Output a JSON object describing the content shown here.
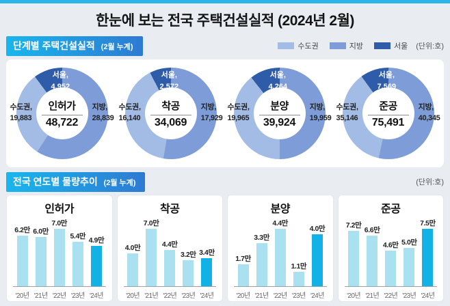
{
  "page": {
    "title": "한눈에 보는 전국 주택건설실적 (2024년 2월)"
  },
  "colors": {
    "accent_strip": "#2ab5e8",
    "capital": "#a3bce5",
    "province": "#7d9cd8",
    "seoul": "#2f5ca8",
    "bar": "#a9e1f0",
    "bar_highlight": "#12b2e6"
  },
  "section1": {
    "header": "단계별 주택건설실적",
    "header_sub": "(2월 누계)",
    "unit_label": "(단위:호)",
    "legend": [
      {
        "label": "수도권",
        "color_key": "capital"
      },
      {
        "label": "지방",
        "color_key": "province"
      },
      {
        "label": "서울",
        "color_key": "seoul"
      }
    ]
  },
  "section2": {
    "header": "전국 연도별 물량추이",
    "header_sub": "(2월 누계)",
    "unit_label": "(단위:호)"
  },
  "chart_data": [
    {
      "type": "donut",
      "title": "인허가",
      "total": 48722,
      "total_display": "48,722",
      "segments": {
        "capital": 19883,
        "province": 28839,
        "seoul": 4952
      },
      "segment_labels": {
        "capital": "수도권,",
        "province": "지방,",
        "seoul": "서울,"
      },
      "segment_displays": {
        "capital": "19,883",
        "province": "28,839",
        "seoul": "4,952"
      },
      "note": "수도권 includes 서울; donut order clockwise from top: 지방, 수도권, 서울"
    },
    {
      "type": "donut",
      "title": "착공",
      "total": 34069,
      "total_display": "34,069",
      "segments": {
        "capital": 16140,
        "province": 17929,
        "seoul": 2572
      },
      "segment_labels": {
        "capital": "수도권,",
        "province": "지방,",
        "seoul": "서울,"
      },
      "segment_displays": {
        "capital": "16,140",
        "province": "17,929",
        "seoul": "2,572"
      }
    },
    {
      "type": "donut",
      "title": "분양",
      "total": 39924,
      "total_display": "39,924",
      "segments": {
        "capital": 19965,
        "province": 19959,
        "seoul": 4264
      },
      "segment_labels": {
        "capital": "수도권,",
        "province": "지방,",
        "seoul": "서울,"
      },
      "segment_displays": {
        "capital": "19,965",
        "province": "19,959",
        "seoul": "4,264"
      }
    },
    {
      "type": "donut",
      "title": "준공",
      "total": 75491,
      "total_display": "75,491",
      "segments": {
        "capital": 35146,
        "province": 40345,
        "seoul": 7569
      },
      "segment_labels": {
        "capital": "수도권,",
        "province": "지방,",
        "seoul": "서울,"
      },
      "segment_displays": {
        "capital": "35,146",
        "province": "40,345",
        "seoul": "7,569"
      }
    },
    {
      "type": "bar",
      "title": "인허가",
      "unit": "만",
      "highlight_index": 4,
      "categories": [
        "'20년",
        "'21년",
        "'22년",
        "'23년",
        "'24년"
      ],
      "values": [
        6.2,
        6.0,
        7.0,
        5.4,
        4.9
      ],
      "value_labels": [
        "6.2만",
        "6.0만",
        "7.0만",
        "5.4만",
        "4.9만"
      ]
    },
    {
      "type": "bar",
      "title": "착공",
      "unit": "만",
      "highlight_index": 4,
      "categories": [
        "'20년",
        "'21년",
        "'22년",
        "'23년",
        "'24년"
      ],
      "values": [
        4.0,
        7.0,
        4.4,
        3.2,
        3.4
      ],
      "value_labels": [
        "4.0만",
        "7.0만",
        "4.4만",
        "3.2만",
        "3.4만"
      ]
    },
    {
      "type": "bar",
      "title": "분양",
      "unit": "만",
      "highlight_index": 4,
      "categories": [
        "'20년",
        "'21년",
        "'22년",
        "'23년",
        "'24년"
      ],
      "values": [
        1.7,
        3.3,
        4.4,
        1.1,
        4.0
      ],
      "value_labels": [
        "1.7만",
        "3.3만",
        "4.4만",
        "1.1만",
        "4.0만"
      ]
    },
    {
      "type": "bar",
      "title": "준공",
      "unit": "만",
      "highlight_index": 4,
      "categories": [
        "'20년",
        "'21년",
        "'22년",
        "'23년",
        "'24년"
      ],
      "values": [
        7.2,
        6.6,
        4.6,
        5.0,
        7.5
      ],
      "value_labels": [
        "7.2만",
        "6.6만",
        "4.6만",
        "5.0만",
        "7.5만"
      ]
    }
  ]
}
